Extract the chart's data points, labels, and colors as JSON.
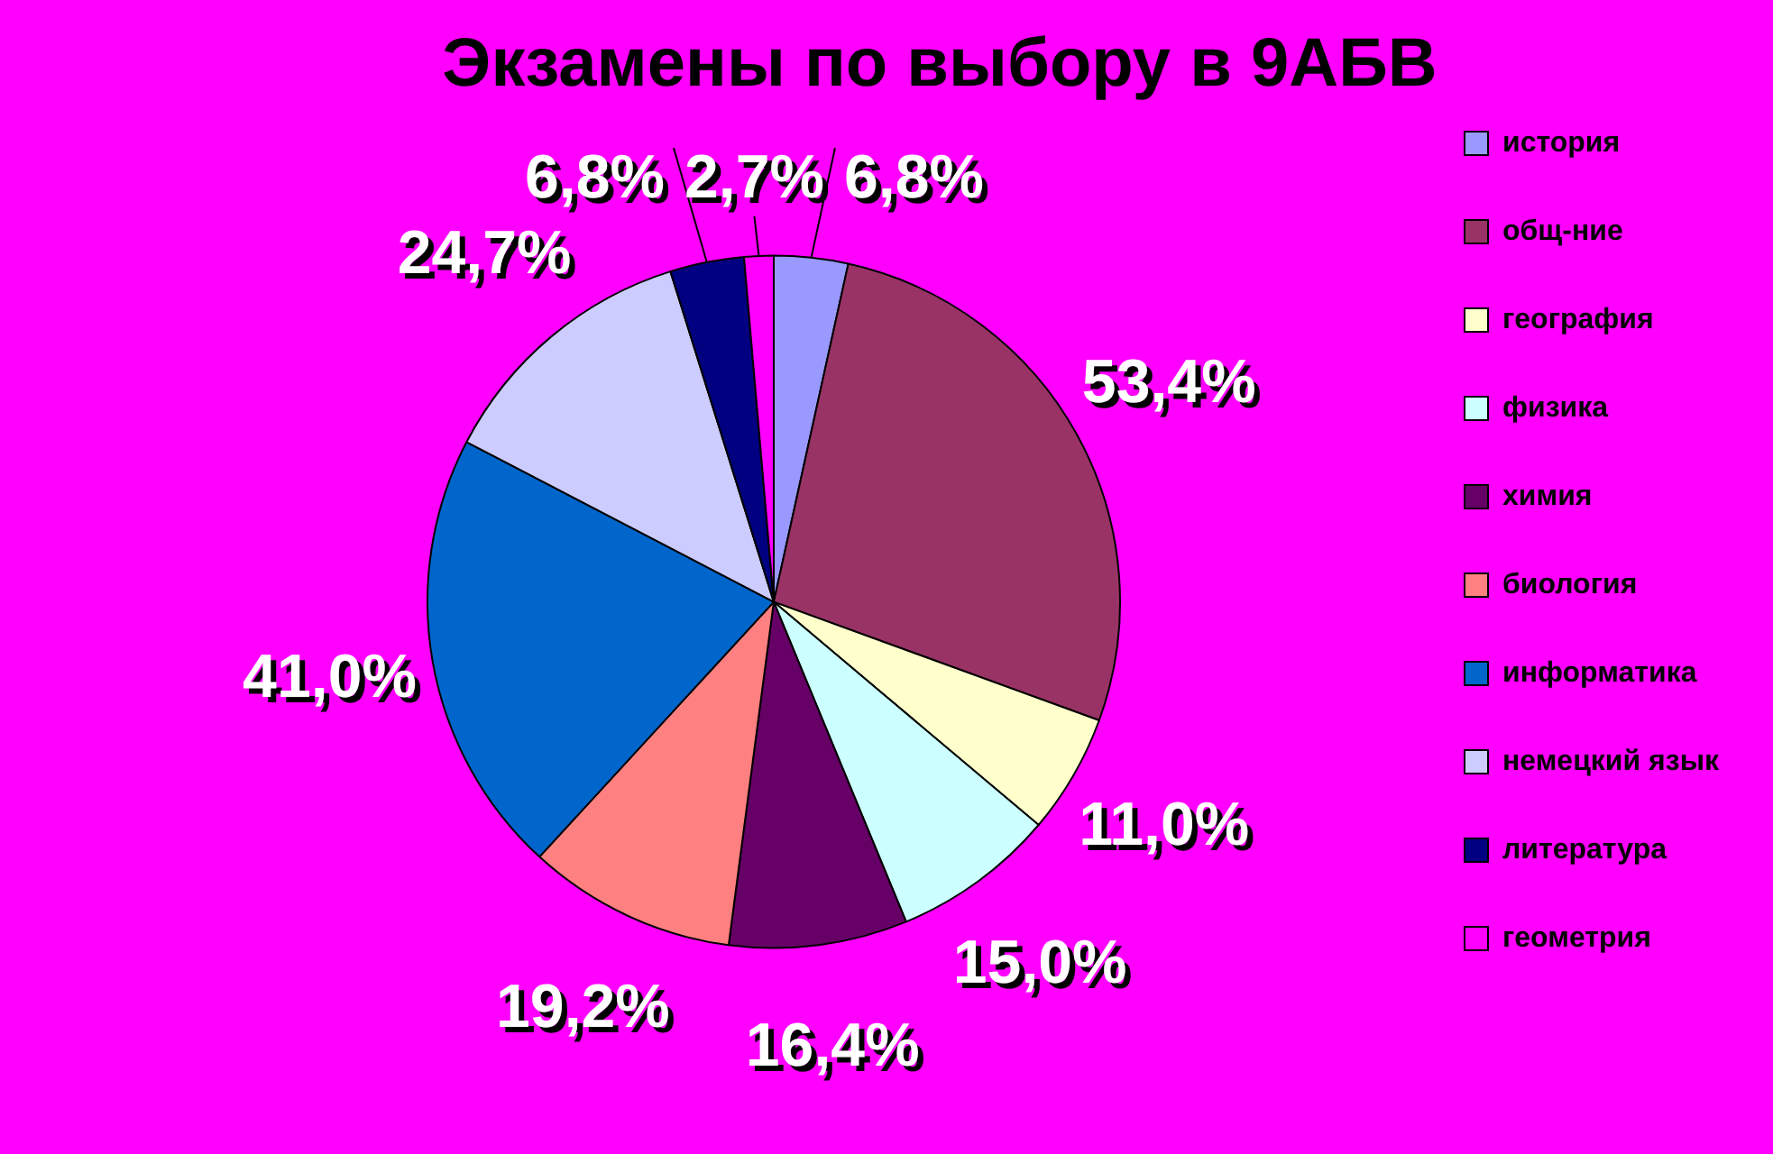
{
  "chart_data": {
    "type": "pie",
    "title": "Экзамены по выбору в 9АБВ",
    "categories": [
      "история",
      "общ-ние",
      "география",
      "физика",
      "химия",
      "биология",
      "информатика",
      "немецкий язык",
      "литература",
      "геометрия"
    ],
    "values": [
      6.8,
      53.4,
      11.0,
      15.0,
      16.4,
      19.2,
      41.0,
      24.7,
      6.8,
      2.7
    ],
    "value_labels": [
      "6,8%",
      "53,4%",
      "11,0%",
      "15,0%",
      "16,4%",
      "19,2%",
      "41,0%",
      "24,7%",
      "6,8%",
      "2,7%"
    ],
    "colors": [
      "#9999ff",
      "#993366",
      "#ffffcc",
      "#ccffff",
      "#660066",
      "#ff8080",
      "#0066cc",
      "#ccccff",
      "#000080",
      "#ff00ff"
    ],
    "legend": "right"
  }
}
